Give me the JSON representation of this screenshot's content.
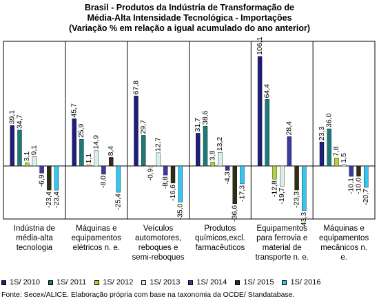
{
  "chart_data": {
    "type": "bar",
    "title": [
      "Brasil - Produtos da Indústria de Transformação de",
      "Média-Alta Intensidade Tecnológica - Importações",
      "(Variação % em relação a igual acumulado do ano anterior)"
    ],
    "categories": [
      [
        "Indústria de",
        "média-alta",
        "tecnologia"
      ],
      [
        "Máquinas e",
        "equipamentos",
        "elétricos n. e."
      ],
      [
        "Veículos",
        "automotores,",
        "reboques e",
        "semi-reboques"
      ],
      [
        "Produtos",
        "químicos,excl.",
        "farmacêuticos"
      ],
      [
        "Equipamentos",
        "para ferrovia e",
        "material de",
        "transporte n. e."
      ],
      [
        "Máquinas e",
        "equipamentos",
        "mecânicos n.",
        "e."
      ]
    ],
    "series": [
      {
        "name": "1S/ 2010",
        "color": "#1f1f7a",
        "values": [
          39.1,
          45.7,
          67.8,
          31.7,
          106.1,
          23.3
        ]
      },
      {
        "name": "1S/ 2011",
        "color": "#1d7a7a",
        "values": [
          34.7,
          25.9,
          29.7,
          38.6,
          64.4,
          36.0
        ]
      },
      {
        "name": "1S/ 2012",
        "color": "#b5d334",
        "values": [
          3.1,
          1.1,
          -0.9,
          3.8,
          -12.8,
          7.8
        ]
      },
      {
        "name": "1S/ 2013",
        "color": "#d9f2e6",
        "values": [
          9.1,
          14.9,
          12.7,
          13.2,
          -19.7,
          1.5
        ]
      },
      {
        "name": "1S/ 2014",
        "color": "#3a3aa0",
        "values": [
          -6.9,
          -8.0,
          -8.8,
          -4.3,
          28.4,
          -10.1
        ]
      },
      {
        "name": "1S/ 2015",
        "color": "#2e2e14",
        "values": [
          -23.4,
          8.4,
          -16.6,
          -36.6,
          -23.3,
          -10.0
        ]
      },
      {
        "name": "1S/ 2016",
        "color": "#33c6f0",
        "values": [
          -23.4,
          -25.4,
          -35.0,
          -17.3,
          -43.3,
          -20.7
        ]
      }
    ],
    "ylim": [
      -50,
      110
    ],
    "grid": false,
    "legend": "bottom"
  },
  "source": "Fonte: Secex/ALICE. Elaboração própria com base na taxonomia da OCDE/ Standatabase."
}
